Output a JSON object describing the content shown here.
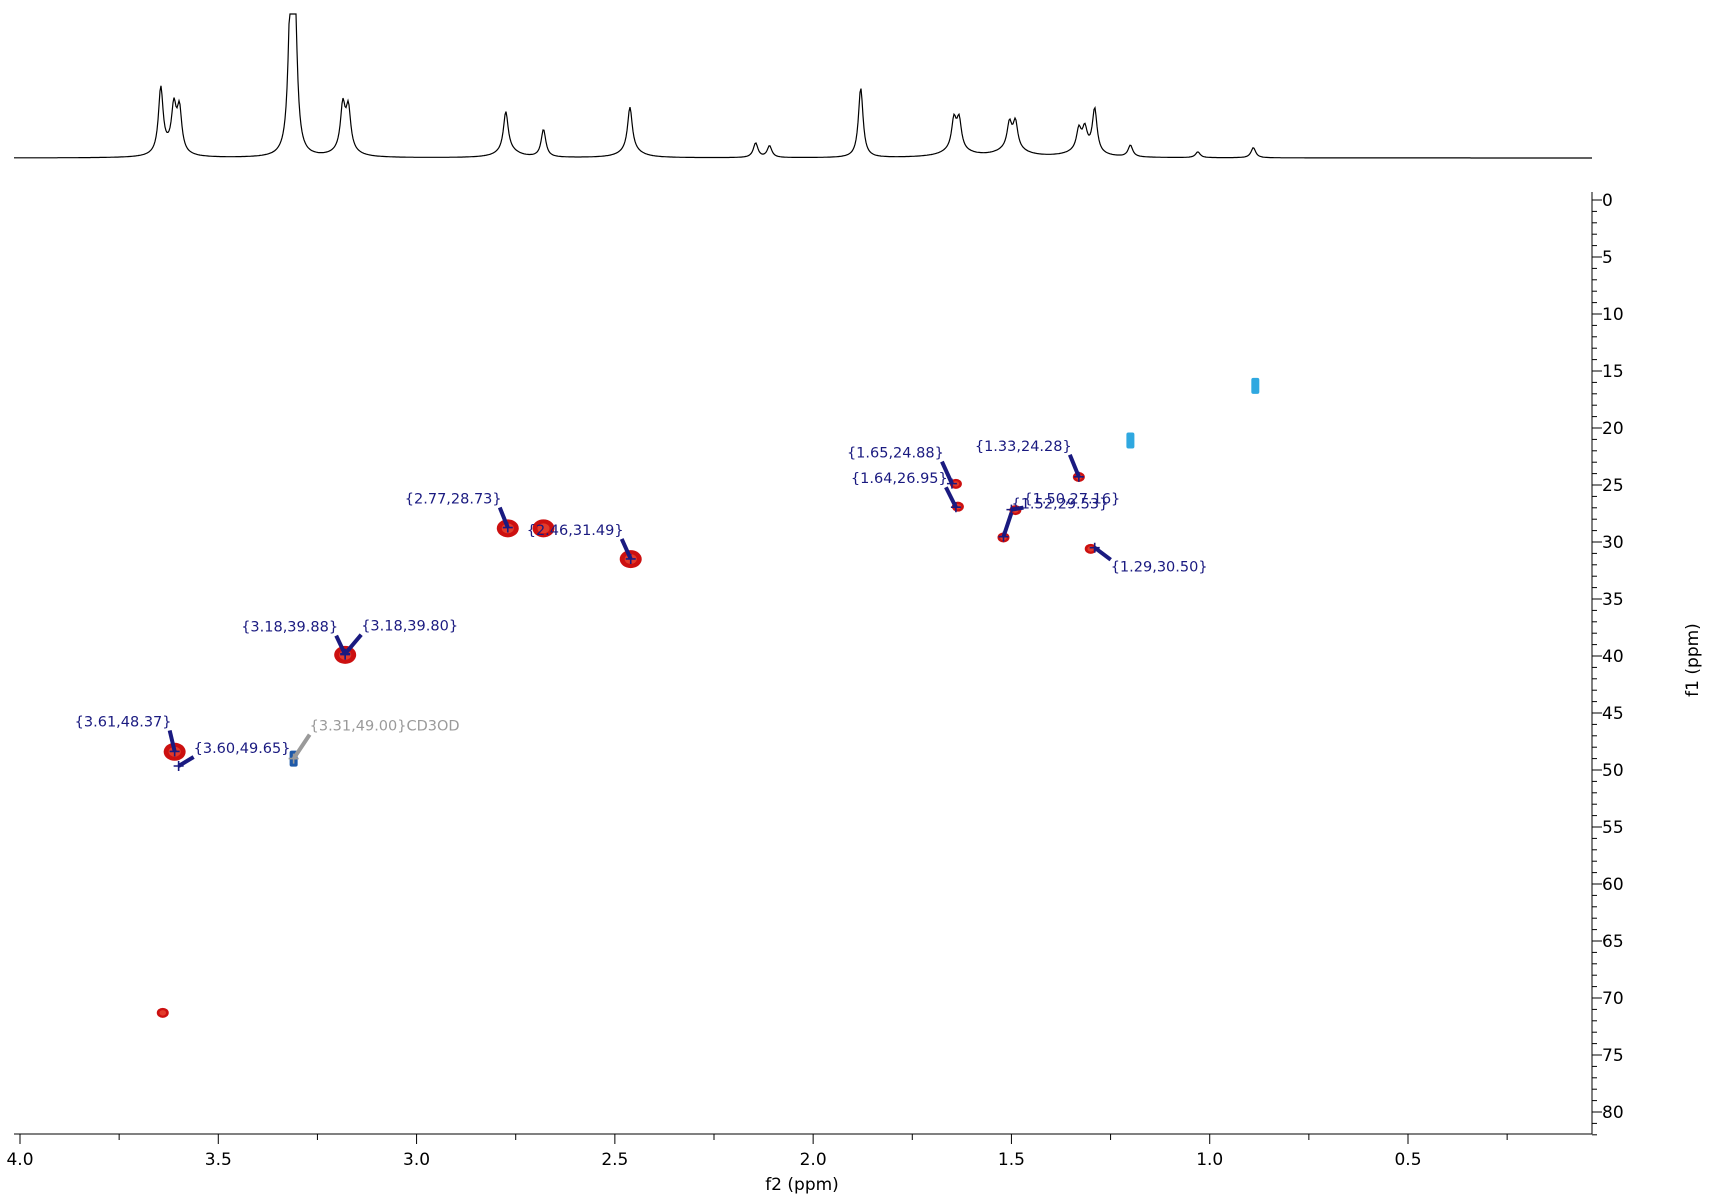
{
  "chart_data": {
    "type": "scatter",
    "subtype": "2D NMR HSQC spectrum with 1D projection",
    "xlabel": "f2 (ppm)",
    "ylabel": "f1 (ppm)",
    "xlim": [
      4.0,
      0.05
    ],
    "ylim": [
      0,
      82
    ],
    "x_inverted": true,
    "y_inverted": true,
    "xticks": [
      {
        "value": 4.0,
        "label": "4.0"
      },
      {
        "value": 3.5,
        "label": "3.5"
      },
      {
        "value": 3.0,
        "label": "3.0"
      },
      {
        "value": 2.5,
        "label": "2.5"
      },
      {
        "value": 2.0,
        "label": "2.0"
      },
      {
        "value": 1.5,
        "label": "1.5"
      },
      {
        "value": 1.0,
        "label": "1.0"
      },
      {
        "value": 0.5,
        "label": "0.5"
      }
    ],
    "yticks": [
      {
        "value": 0,
        "label": "0"
      },
      {
        "value": 5,
        "label": "5"
      },
      {
        "value": 10,
        "label": "10"
      },
      {
        "value": 15,
        "label": "15"
      },
      {
        "value": 20,
        "label": "20"
      },
      {
        "value": 25,
        "label": "25"
      },
      {
        "value": 30,
        "label": "30"
      },
      {
        "value": 35,
        "label": "35"
      },
      {
        "value": 40,
        "label": "40"
      },
      {
        "value": 45,
        "label": "45"
      },
      {
        "value": 50,
        "label": "50"
      },
      {
        "value": 55,
        "label": "55"
      },
      {
        "value": 60,
        "label": "60"
      },
      {
        "value": 65,
        "label": "65"
      },
      {
        "value": 70,
        "label": "70"
      },
      {
        "value": 75,
        "label": "75"
      },
      {
        "value": 80,
        "label": "80"
      }
    ],
    "cross_peaks": [
      {
        "x": 3.61,
        "y": 48.4,
        "phase": "positive"
      },
      {
        "x": 3.18,
        "y": 39.9,
        "phase": "positive"
      },
      {
        "x": 2.77,
        "y": 28.8,
        "phase": "positive"
      },
      {
        "x": 2.46,
        "y": 31.5,
        "phase": "positive"
      },
      {
        "x": 2.68,
        "y": 28.8,
        "phase": "positive"
      },
      {
        "x": 1.64,
        "y": 24.9,
        "phase": "positive"
      },
      {
        "x": 1.635,
        "y": 26.9,
        "phase": "positive"
      },
      {
        "x": 1.49,
        "y": 27.2,
        "phase": "positive"
      },
      {
        "x": 1.52,
        "y": 29.6,
        "phase": "positive"
      },
      {
        "x": 1.33,
        "y": 24.3,
        "phase": "positive"
      },
      {
        "x": 1.3,
        "y": 30.6,
        "phase": "positive"
      },
      {
        "x": 3.64,
        "y": 71.3,
        "phase": "positive"
      },
      {
        "x": 3.31,
        "y": 49.0,
        "phase": "negative"
      },
      {
        "x": 1.2,
        "y": 21.1,
        "phase": "negative"
      },
      {
        "x": 0.885,
        "y": 16.3,
        "phase": "negative"
      }
    ],
    "annotations": [
      {
        "text": "{3.61,48.37}",
        "x": 3.61,
        "y": 48.37,
        "color": "#1a1a80"
      },
      {
        "text": "{3.60,49.65}",
        "x": 3.6,
        "y": 49.65,
        "color": "#1a1a80"
      },
      {
        "text": "{3.31,49.00}CD3OD",
        "x": 3.31,
        "y": 49.0,
        "color": "#9a9a9a"
      },
      {
        "text": "{3.18,39.88}",
        "x": 3.18,
        "y": 39.88,
        "color": "#1a1a80"
      },
      {
        "text": "{3.18,39.80}",
        "x": 3.18,
        "y": 39.8,
        "color": "#1a1a80"
      },
      {
        "text": "{2.77,28.73}",
        "x": 2.77,
        "y": 28.73,
        "color": "#1a1a80"
      },
      {
        "text": "{2.46,31.49}",
        "x": 2.46,
        "y": 31.49,
        "color": "#1a1a80"
      },
      {
        "text": "{1.65,24.88}",
        "x": 1.65,
        "y": 24.88,
        "color": "#1a1a80"
      },
      {
        "text": "{1.64,26.95}",
        "x": 1.64,
        "y": 26.95,
        "color": "#1a1a80"
      },
      {
        "text": "{1.33,24.28}",
        "x": 1.33,
        "y": 24.28,
        "color": "#1a1a80"
      },
      {
        "text": "{1.52,29.53}",
        "x": 1.52,
        "y": 29.53,
        "color": "#1a1a80"
      },
      {
        "text": "{1.50,27.16}",
        "x": 1.5,
        "y": 27.16,
        "color": "#1a1a80"
      },
      {
        "text": "{1.29,30.50}",
        "x": 1.29,
        "y": 30.5,
        "color": "#1a1a80"
      }
    ],
    "projection_1d": {
      "axis": "f2",
      "peaks": [
        {
          "x": 3.645,
          "height": 0.45
        },
        {
          "x": 3.612,
          "height": 0.29
        },
        {
          "x": 3.598,
          "height": 0.29
        },
        {
          "x": 3.318,
          "height": 0.95
        },
        {
          "x": 3.307,
          "height": 0.95
        },
        {
          "x": 3.186,
          "height": 0.3
        },
        {
          "x": 3.172,
          "height": 0.28
        },
        {
          "x": 2.775,
          "height": 0.27
        },
        {
          "x": 2.68,
          "height": 0.19
        },
        {
          "x": 2.462,
          "height": 0.3
        },
        {
          "x": 2.145,
          "height": 0.1
        },
        {
          "x": 2.11,
          "height": 0.08
        },
        {
          "x": 1.88,
          "height": 0.48
        },
        {
          "x": 1.645,
          "height": 0.2
        },
        {
          "x": 1.632,
          "height": 0.2
        },
        {
          "x": 1.505,
          "height": 0.17
        },
        {
          "x": 1.49,
          "height": 0.18
        },
        {
          "x": 1.33,
          "height": 0.14
        },
        {
          "x": 1.315,
          "height": 0.14
        },
        {
          "x": 1.29,
          "height": 0.3
        },
        {
          "x": 1.2,
          "height": 0.08
        },
        {
          "x": 1.03,
          "height": 0.04
        },
        {
          "x": 0.89,
          "height": 0.07
        }
      ]
    },
    "colors": {
      "positive": "#cc1010",
      "positive_core": "#e23a2a",
      "negative": "#1f5aa8",
      "negative_light": "#2fa8e0",
      "peak_label": "#1a1a80",
      "solvent_label": "#9a9a9a",
      "projection_line": "#000000"
    }
  }
}
